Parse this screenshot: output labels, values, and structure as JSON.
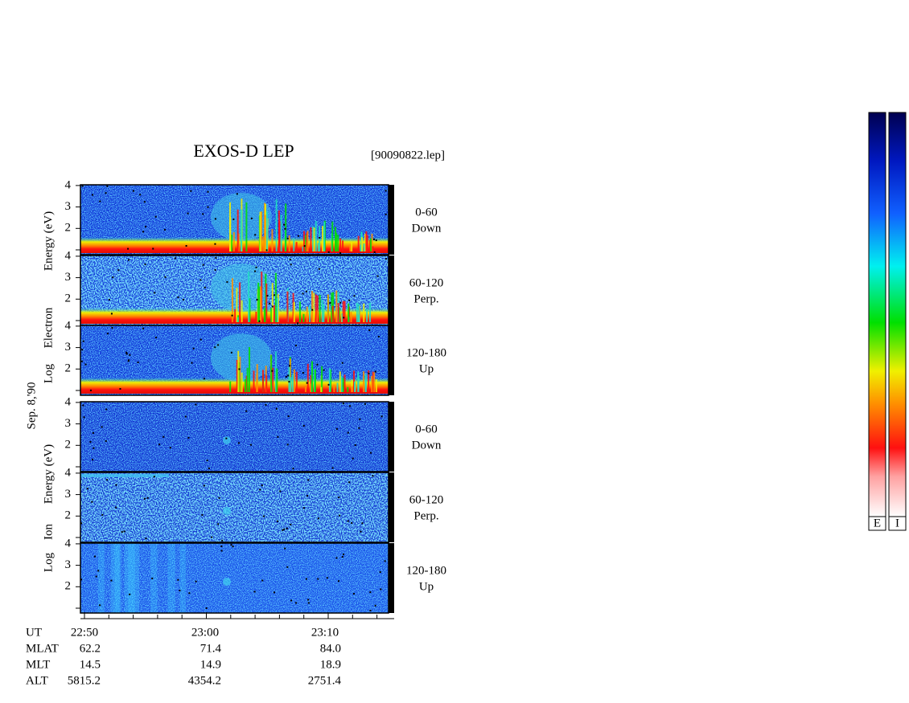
{
  "header": {
    "title": "EXOS-D LEP",
    "file": "[90090822.lep]"
  },
  "date": "Sep. 8,'90",
  "groups": [
    {
      "axis_label": [
        "Log",
        "Electron",
        "Energy (eV)"
      ],
      "panels": [
        {
          "angle": "0-60",
          "direction": "Down"
        },
        {
          "angle": "60-120",
          "direction": "Perp."
        },
        {
          "angle": "120-180",
          "direction": "Up"
        }
      ]
    },
    {
      "axis_label": [
        "Log",
        "Ion",
        "Energy (eV)"
      ],
      "panels": [
        {
          "angle": "0-60",
          "direction": "Down"
        },
        {
          "angle": "60-120",
          "direction": "Perp."
        },
        {
          "angle": "120-180",
          "direction": "Up"
        }
      ]
    }
  ],
  "yticks": [
    "2",
    "3",
    "4"
  ],
  "time_axis": {
    "rows": [
      {
        "label": "UT",
        "values": [
          "22:50",
          "23:00",
          "23:10"
        ]
      },
      {
        "label": "MLAT",
        "values": [
          "62.2",
          "71.4",
          "84.0"
        ]
      },
      {
        "label": "MLT",
        "values": [
          "14.5",
          "14.9",
          "18.9"
        ]
      },
      {
        "label": "ALT",
        "values": [
          "5815.2",
          "4354.2",
          "2751.4"
        ]
      }
    ]
  },
  "colorbars": [
    "E",
    "I"
  ]
}
